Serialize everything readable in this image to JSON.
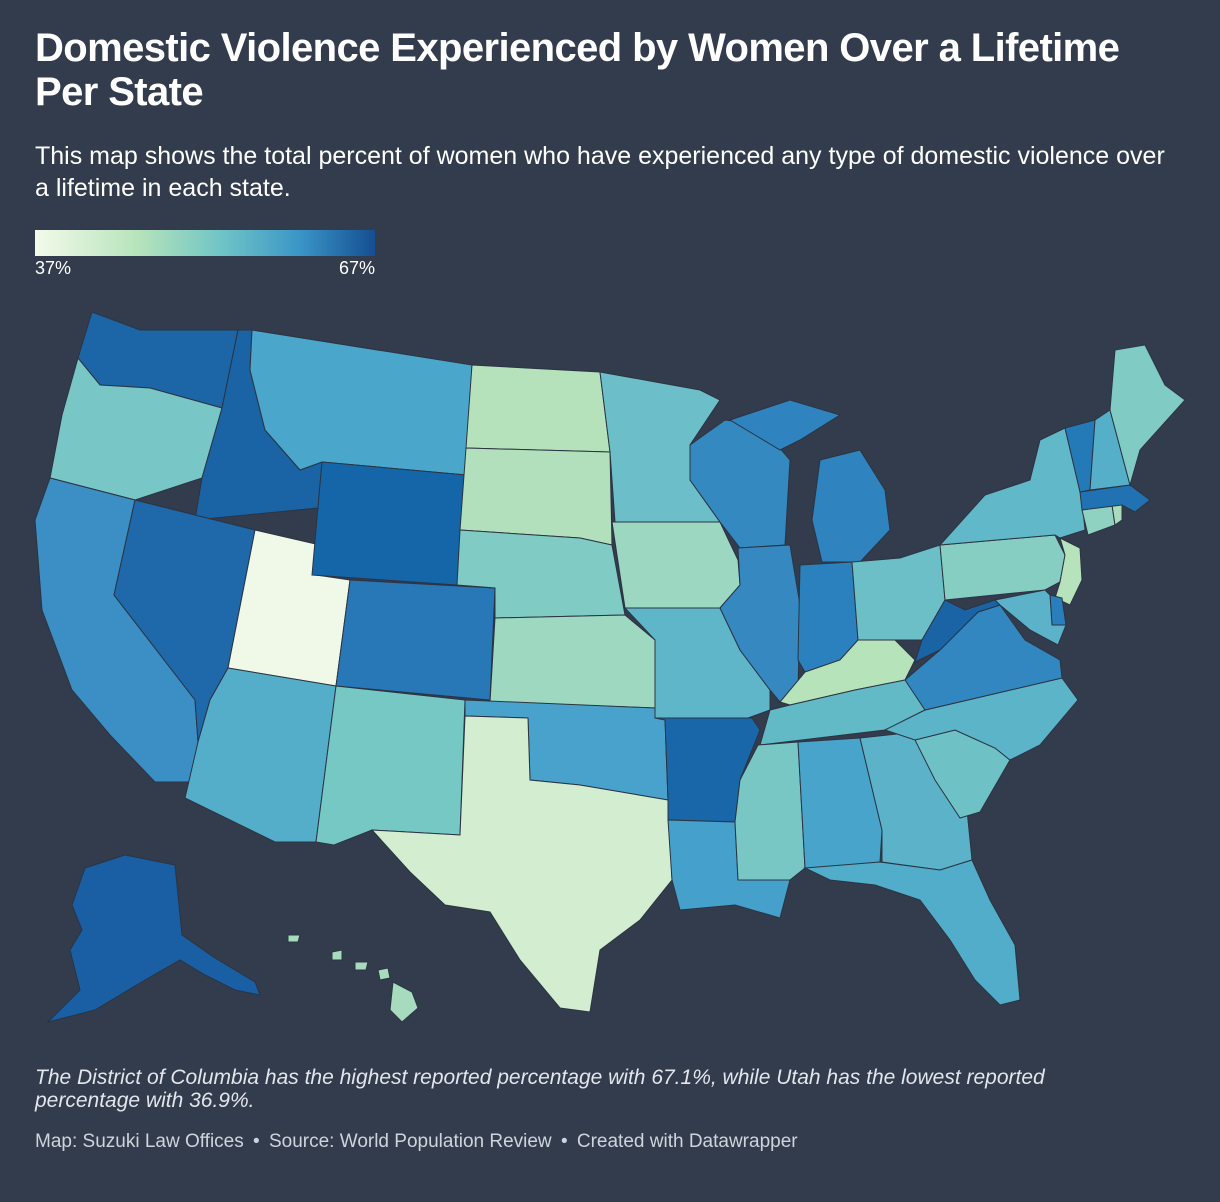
{
  "title": "Domestic Violence Experienced by Women Over a Lifetime Per State",
  "subtitle": "This map shows the total percent of women who have experienced any type of domestic violence over a lifetime in each state.",
  "legend": {
    "min_label": "37%",
    "max_label": "67%",
    "min_value": 37,
    "max_value": 67,
    "color_stops": [
      "#f3faea",
      "#b7e4bb",
      "#6fc4c6",
      "#3a95c7",
      "#154e92"
    ]
  },
  "map": {
    "type": "choropleth",
    "region": "United States",
    "color_scale": "light green to dark blue",
    "state_colors": {
      "WA": "#1c66a7",
      "OR": "#78c6c6",
      "CA": "#3c8fc4",
      "ID": "#1a63a4",
      "NV": "#1f68a9",
      "UT": "#f0f9e8",
      "AZ": "#55aec9",
      "MT": "#4aa6cb",
      "WY": "#1566a8",
      "CO": "#2877b6",
      "NM": "#76c8c4",
      "ND": "#b6e2bb",
      "SD": "#b2e0bc",
      "NE": "#80cbc3",
      "KS": "#9ed8c0",
      "OK": "#49a2cc",
      "TX": "#d2edcf",
      "MN": "#6cbfc8",
      "IA": "#9cd7c1",
      "MO": "#5fb6c9",
      "AR": "#1966a8",
      "LA": "#45a0cc",
      "WI": "#3389c0",
      "IL": "#3688c0",
      "MI": "#2f83bf",
      "IN": "#2b81bd",
      "OH": "#6cbfc7",
      "KY": "#b7e3bb",
      "TN": "#62bac7",
      "MS": "#79c7c5",
      "AL": "#48a4cb",
      "GA": "#5cb3c9",
      "FL": "#52adca",
      "SC": "#6ec2c5",
      "NC": "#5cb4c9",
      "VA": "#3287c0",
      "WV": "#1a64a5",
      "PA": "#86cec2",
      "NY": "#60b8c8",
      "VT": "#2479b7",
      "NH": "#55afc8",
      "ME": "#80cbc4",
      "MA": "#2172b2",
      "CT": "#8fd2c1",
      "RI": "#a8dcbd",
      "NJ": "#b6e3bb",
      "DE": "#2a7ebb",
      "MD": "#5bb2c9",
      "AK": "#1a5ea3",
      "HI": "#a6dbbe"
    }
  },
  "note": "The District of Columbia has the highest reported percentage with 67.1%, while Utah has the lowest reported percentage with 36.9%.",
  "footer": {
    "map_by": "Map: Suzuki Law Offices",
    "source": "Source: World Population Review",
    "tool": "Created with Datawrapper",
    "separator": "•"
  }
}
